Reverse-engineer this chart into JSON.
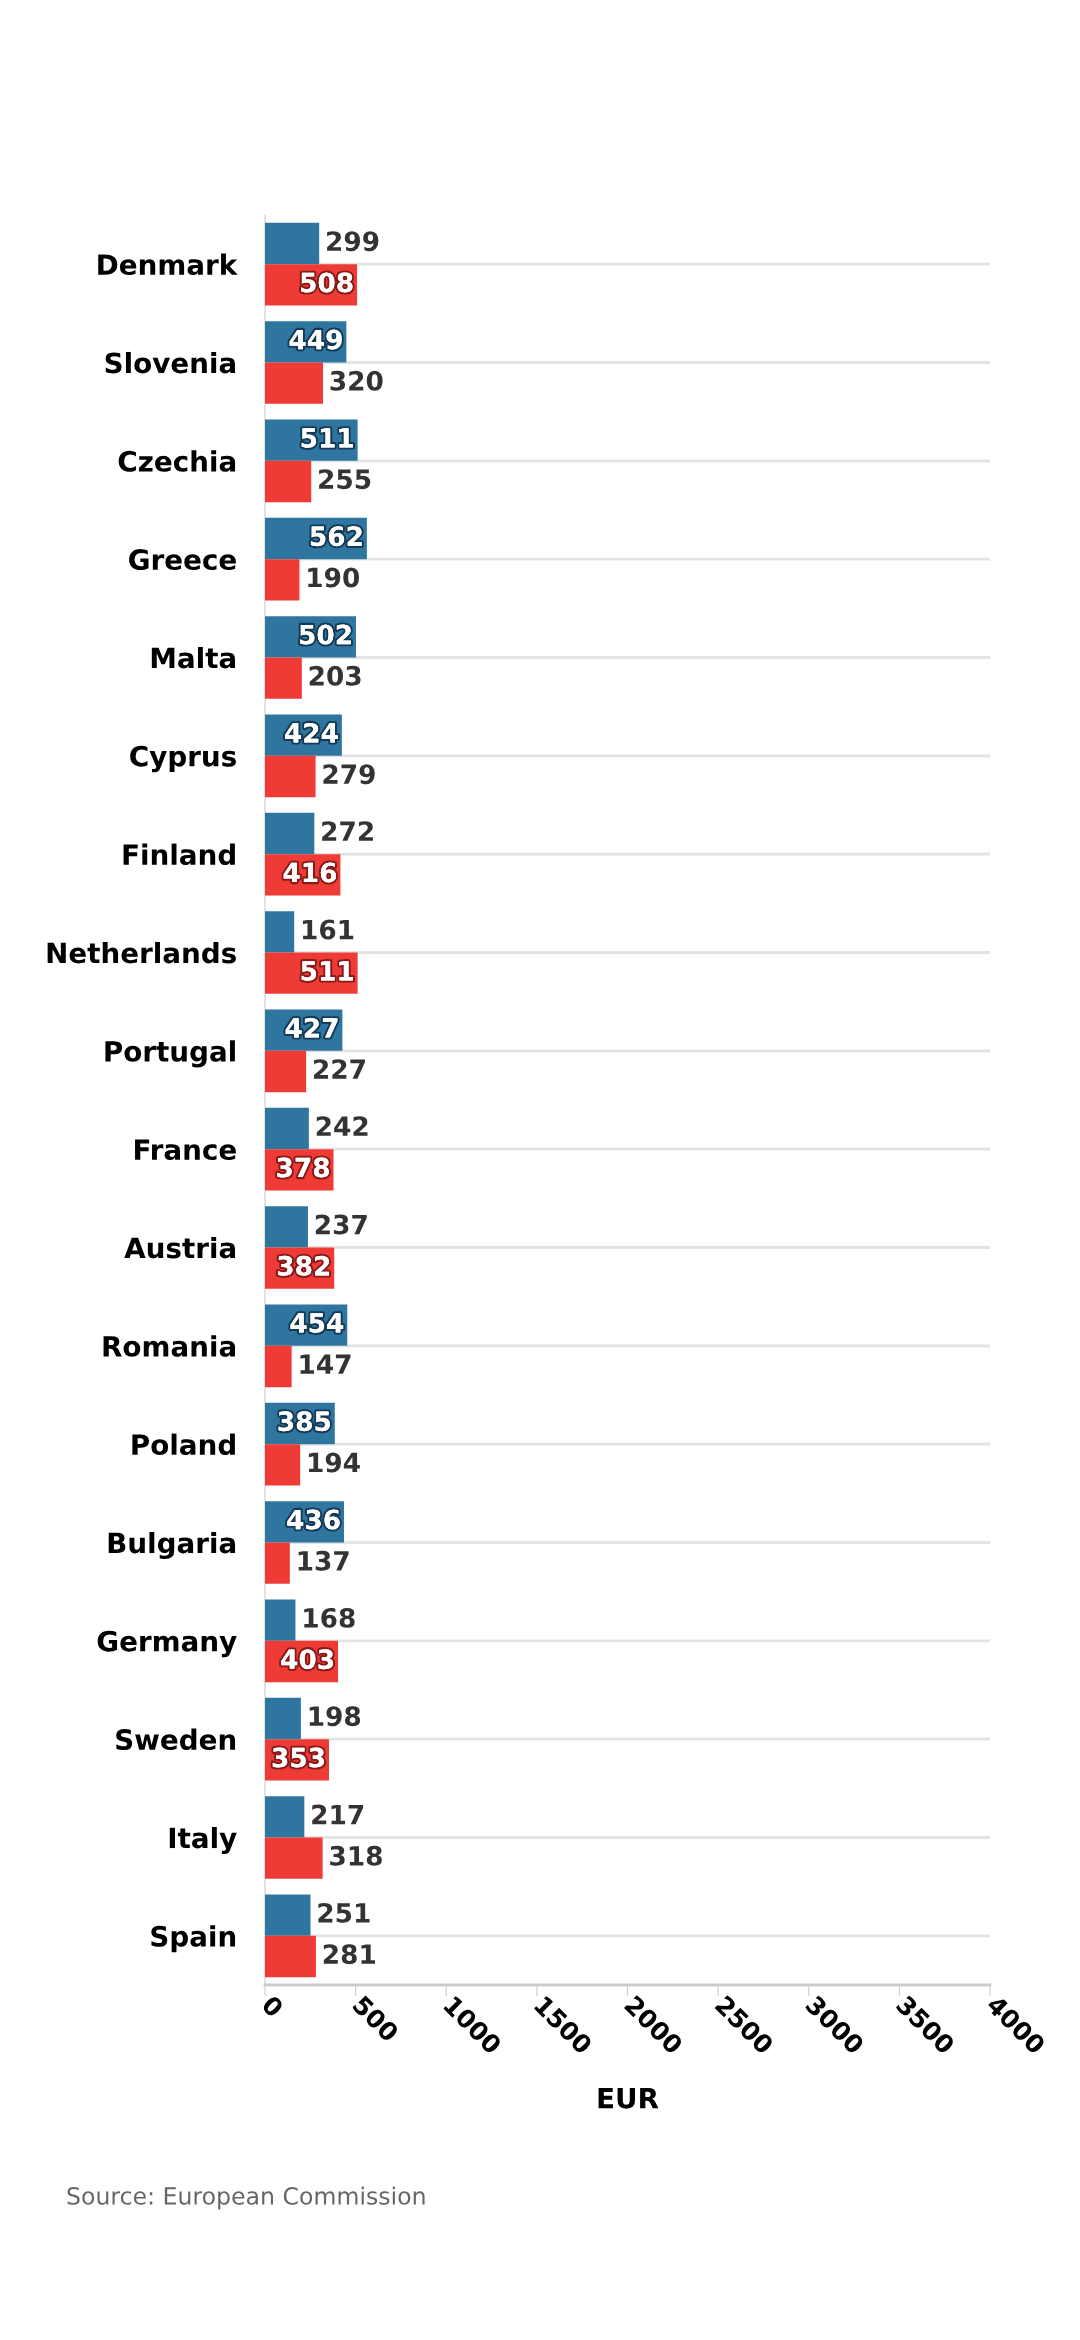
{
  "chart_data": {
    "type": "bar",
    "orientation": "horizontal",
    "xlabel": "EUR",
    "categories": [
      "Denmark",
      "Slovenia",
      "Czechia",
      "Greece",
      "Malta",
      "Cyprus",
      "Finland",
      "Netherlands",
      "Portugal",
      "France",
      "Austria",
      "Romania",
      "Poland",
      "Bulgaria",
      "Germany",
      "Sweden",
      "Italy",
      "Spain"
    ],
    "series": [
      {
        "color": "#2e75a0",
        "values": [
          299,
          449,
          511,
          562,
          502,
          424,
          272,
          161,
          427,
          242,
          237,
          454,
          385,
          436,
          168,
          198,
          217,
          251
        ]
      },
      {
        "color": "#ef3b36",
        "values": [
          508,
          320,
          255,
          190,
          203,
          279,
          416,
          511,
          227,
          378,
          382,
          147,
          194,
          137,
          403,
          353,
          318,
          281
        ]
      }
    ],
    "xlim": [
      0,
      4000
    ],
    "xticks": [
      0,
      500,
      1000,
      1500,
      2000,
      2500,
      3000,
      3500,
      4000
    ],
    "grid": "y",
    "data_labels": true,
    "legend": false,
    "annotations": [
      "Source: European Commission"
    ]
  }
}
